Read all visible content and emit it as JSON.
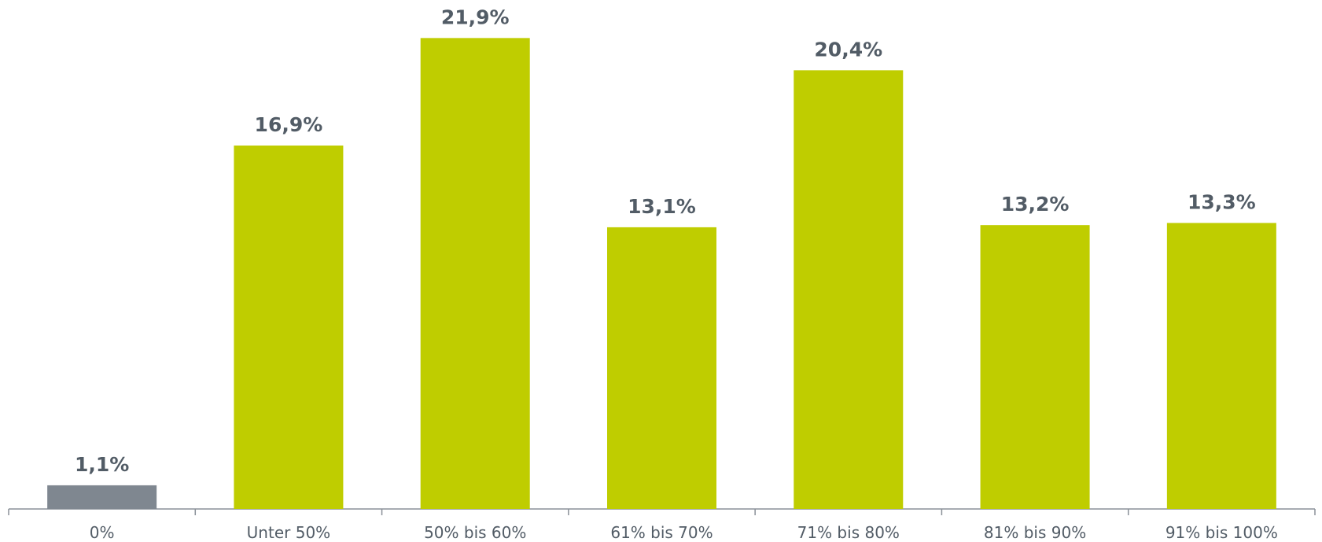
{
  "chart_data": {
    "type": "bar",
    "categories": [
      "0%",
      "Unter 50%",
      "50% bis 60%",
      "61% bis 70%",
      "71% bis 80%",
      "81% bis 90%",
      "91% bis 100%"
    ],
    "values": [
      1.1,
      16.9,
      21.9,
      13.1,
      20.4,
      13.2,
      13.3
    ],
    "value_labels": [
      "1,1%",
      "16,9%",
      "21,9%",
      "13,1%",
      "20,4%",
      "13,2%",
      "13,3%"
    ],
    "colors": [
      "#7f8790",
      "#bfcd00",
      "#bfcd00",
      "#bfcd00",
      "#bfcd00",
      "#bfcd00",
      "#bfcd00"
    ]
  }
}
